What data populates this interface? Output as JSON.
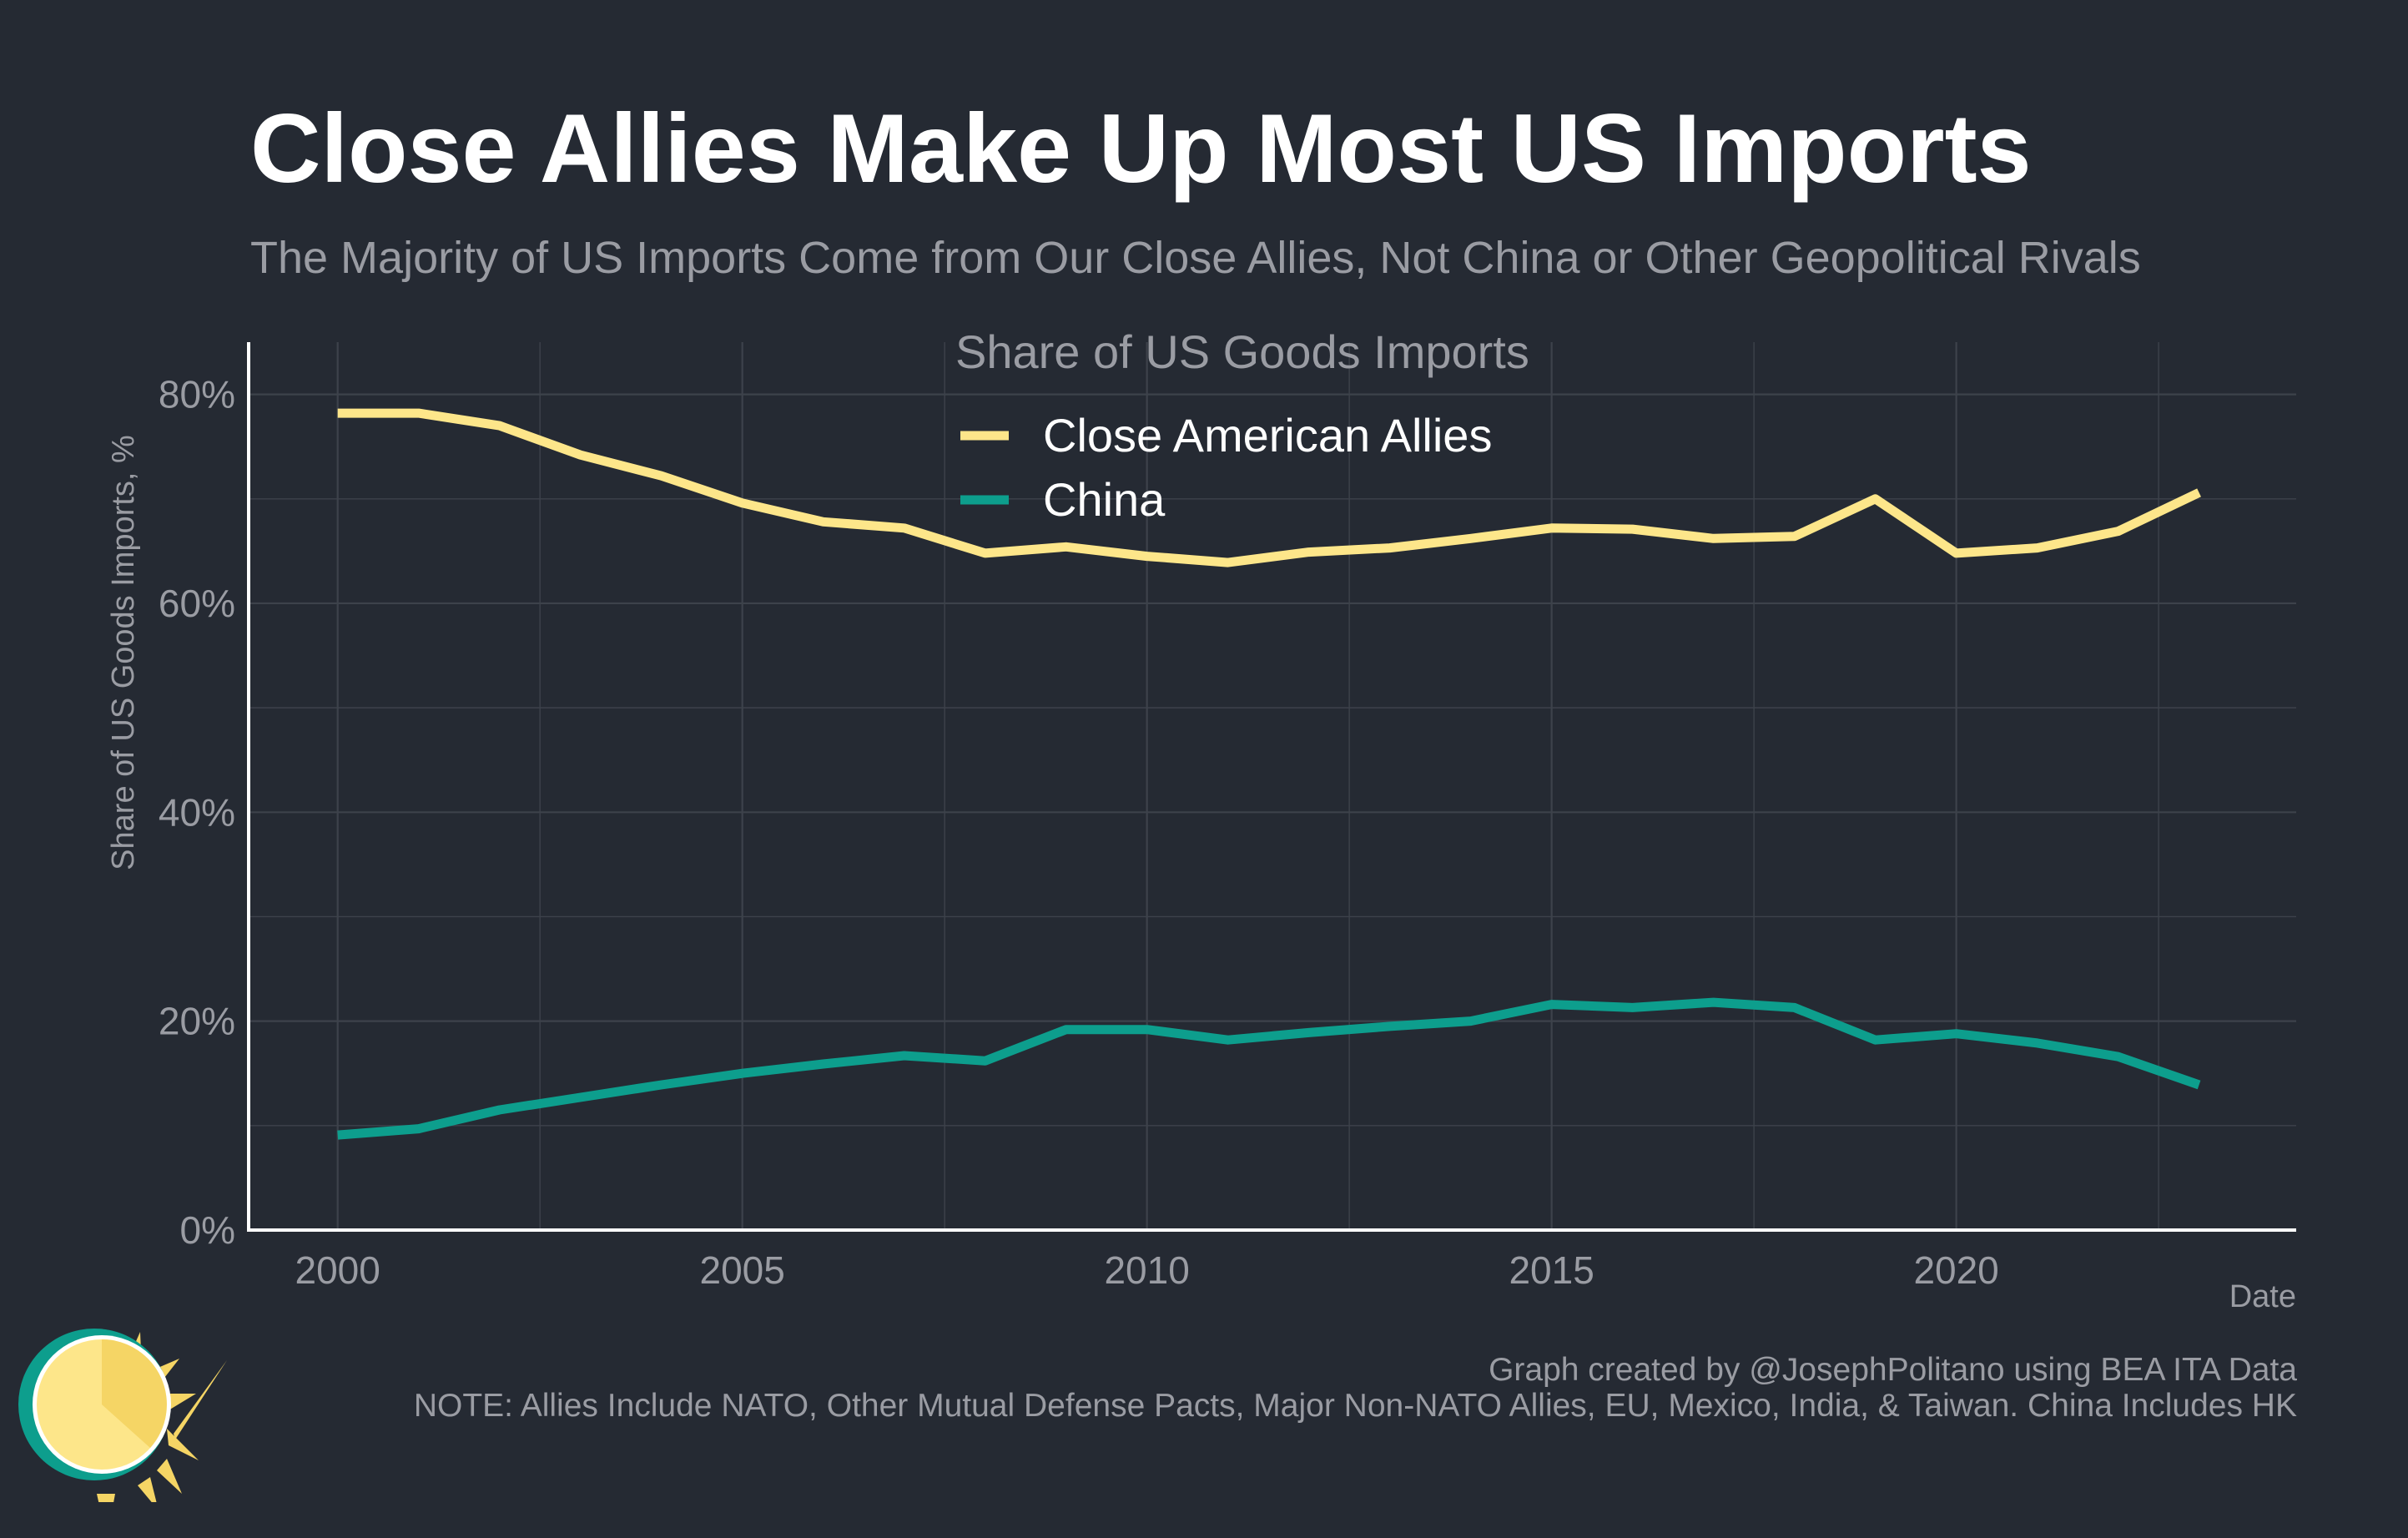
{
  "header": {
    "title": "Close Allies Make Up Most US Imports",
    "subtitle": "The Majority of US Imports Come from Our Close Allies, Not China or Other Geopolitical Rivals"
  },
  "footer": {
    "credit": "Graph created by @JosephPolitano using BEA ITA Data",
    "note": "NOTE: Allies Include NATO, Other Mutual Defense Pacts, Major Non-NATO Allies, EU, Mexico, India, & Taiwan. China Includes HK"
  },
  "logo": {
    "icon": "sun-logo-icon"
  },
  "colors": {
    "background": "#252a33",
    "grid": "#3d424b",
    "axis": "#ffffff",
    "muted_text": "#9a9ca3",
    "allies": "#fde68a",
    "china": "#0d9e8d"
  },
  "chart_data": {
    "type": "line",
    "legend_title": "Share of US Goods Imports",
    "legend_position": "top-center",
    "xlabel": "Date",
    "ylabel": "Share of US Goods Imports, %",
    "xlim": [
      1998.9,
      2024.2
    ],
    "ylim": [
      0,
      85
    ],
    "x_ticks": [
      2000,
      2005,
      2010,
      2015,
      2020
    ],
    "x_tick_labels": [
      "2000",
      "2005",
      "2010",
      "2015",
      "2020"
    ],
    "y_ticks": [
      0,
      20,
      40,
      60,
      80
    ],
    "y_tick_labels": [
      "0%",
      "20%",
      "40%",
      "60%",
      "80%"
    ],
    "grid": true,
    "x": [
      2000,
      2001,
      2002,
      2003,
      2004,
      2005,
      2006,
      2007,
      2008,
      2009,
      2010,
      2011,
      2012,
      2013,
      2014,
      2015,
      2016,
      2017,
      2018,
      2019,
      2020,
      2021,
      2022,
      2023
    ],
    "series": [
      {
        "name": "Close American Allies",
        "color": "#fde68a",
        "values": [
          78.2,
          78.2,
          77.0,
          74.2,
          72.2,
          69.6,
          67.8,
          67.2,
          64.8,
          65.4,
          64.5,
          63.9,
          64.9,
          65.3,
          66.2,
          67.2,
          67.1,
          66.2,
          66.4,
          70.0,
          64.8,
          65.3,
          66.9,
          70.6
        ]
      },
      {
        "name": "China",
        "color": "#0d9e8d",
        "values": [
          9.1,
          9.7,
          11.5,
          12.7,
          13.9,
          15.0,
          15.9,
          16.7,
          16.2,
          19.2,
          19.2,
          18.2,
          18.9,
          19.5,
          20.0,
          21.6,
          21.3,
          21.8,
          21.3,
          18.2,
          18.8,
          17.9,
          16.6,
          13.9
        ]
      }
    ]
  }
}
